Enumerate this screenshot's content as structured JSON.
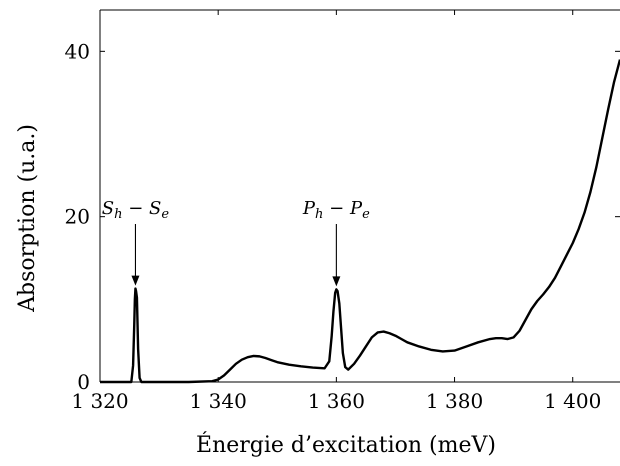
{
  "chart_data": {
    "type": "line",
    "title": "",
    "xlabel": "Énergie d’excitation (meV)",
    "ylabel": "Absorption (u.a.)",
    "xlim": [
      1320,
      1408
    ],
    "ylim": [
      0,
      45
    ],
    "xticks": [
      {
        "value": 1320,
        "label": "1 320"
      },
      {
        "value": 1340,
        "label": "1 340"
      },
      {
        "value": 1360,
        "label": "1 360"
      },
      {
        "value": 1380,
        "label": "1 380"
      },
      {
        "value": 1400,
        "label": "1 400"
      }
    ],
    "yticks": [
      {
        "value": 0,
        "label": "0"
      },
      {
        "value": 20,
        "label": "20"
      },
      {
        "value": 40,
        "label": "40"
      }
    ],
    "grid": false,
    "series": [
      {
        "color": "#000000",
        "x": [
          1320,
          1325.3,
          1325.6,
          1325.8,
          1325.9,
          1326.0,
          1326.1,
          1326.25,
          1326.45,
          1326.7,
          1327,
          1335,
          1339,
          1340,
          1341,
          1342,
          1343,
          1344,
          1345,
          1346,
          1347,
          1348,
          1349,
          1350,
          1352,
          1354,
          1356,
          1358,
          1358.8,
          1359.2,
          1359.5,
          1359.8,
          1360.0,
          1360.2,
          1360.5,
          1360.8,
          1361.1,
          1361.5,
          1362,
          1363,
          1364,
          1365,
          1366,
          1367,
          1368,
          1369,
          1370,
          1371,
          1372,
          1374,
          1376,
          1378,
          1380,
          1382,
          1384,
          1386,
          1387,
          1388,
          1389,
          1390,
          1391,
          1392,
          1393,
          1394,
          1395,
          1396,
          1397,
          1398,
          1399,
          1400,
          1401,
          1402,
          1403,
          1404,
          1405,
          1406,
          1407,
          1408
        ],
        "y": [
          0,
          0,
          2,
          7,
          10,
          11.3,
          11,
          10.2,
          4,
          0.5,
          0,
          0,
          0.1,
          0.3,
          0.8,
          1.5,
          2.2,
          2.7,
          3.0,
          3.15,
          3.1,
          2.9,
          2.65,
          2.4,
          2.1,
          1.9,
          1.75,
          1.65,
          2.5,
          5.5,
          8.5,
          10.8,
          11.2,
          11.0,
          9.5,
          6.5,
          3.5,
          1.8,
          1.5,
          2.2,
          3.2,
          4.3,
          5.4,
          6.0,
          6.1,
          5.9,
          5.6,
          5.2,
          4.8,
          4.3,
          3.9,
          3.7,
          3.8,
          4.3,
          4.8,
          5.2,
          5.3,
          5.3,
          5.2,
          5.4,
          6.2,
          7.5,
          8.8,
          9.8,
          10.6,
          11.5,
          12.6,
          14.0,
          15.4,
          16.8,
          18.5,
          20.5,
          23.0,
          26.0,
          29.5,
          33.0,
          36.3,
          39.0
        ]
      }
    ],
    "annotations": [
      {
        "main": "S",
        "sub1": "h",
        "op": " − ",
        "main2": "S",
        "sub2": "e",
        "x": 1326,
        "y": 11.3
      },
      {
        "main": "P",
        "sub1": "h",
        "op": " − ",
        "main2": "P",
        "sub2": "e",
        "x": 1360,
        "y": 11.2
      }
    ]
  }
}
